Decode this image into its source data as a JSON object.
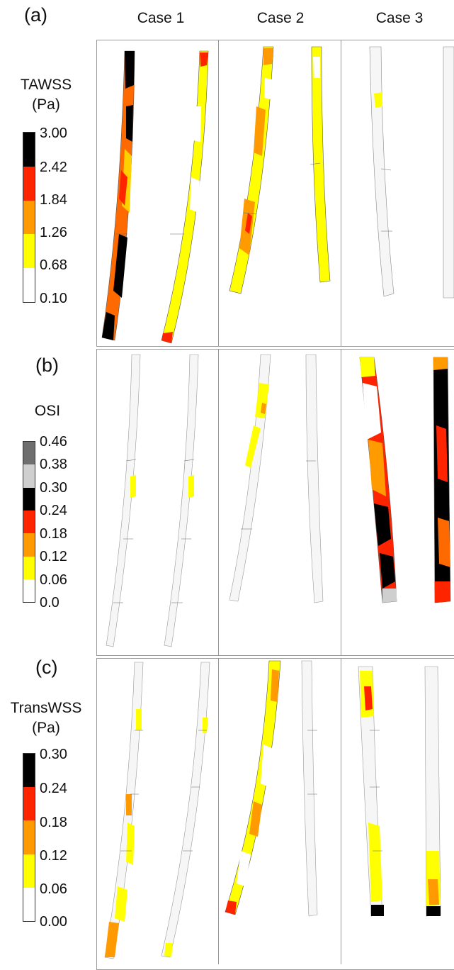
{
  "panels": [
    {
      "label": "(a)",
      "metric_lines": [
        "TAWSS",
        "(Pa)"
      ],
      "ticks": [
        "3.00",
        "2.42",
        "1.84",
        "1.26",
        "0.68",
        "0.10"
      ],
      "bands": [
        "#000000",
        "#ff2400",
        "#ff9a00",
        "#ffff00",
        "#ffffff"
      ]
    },
    {
      "label": "(b)",
      "metric_lines": [
        "OSI"
      ],
      "ticks": [
        "0.46",
        "0.38",
        "0.30",
        "0.24",
        "0.18",
        "0.12",
        "0.06",
        "0.0"
      ],
      "bands": [
        "#6e6e6e",
        "#cfcfcf",
        "#000000",
        "#ff2400",
        "#ff9a00",
        "#ffff00",
        "#ffffff"
      ]
    },
    {
      "label": "(c)",
      "metric_lines": [
        "TransWSS",
        "(Pa)"
      ],
      "ticks": [
        "0.30",
        "0.24",
        "0.18",
        "0.12",
        "0.06",
        "0.00"
      ],
      "bands": [
        "#000000",
        "#ff2400",
        "#ff9a00",
        "#ffff00",
        "#ffffff"
      ]
    }
  ],
  "cases": [
    "Case 1",
    "Case 2",
    "Case 3"
  ]
}
